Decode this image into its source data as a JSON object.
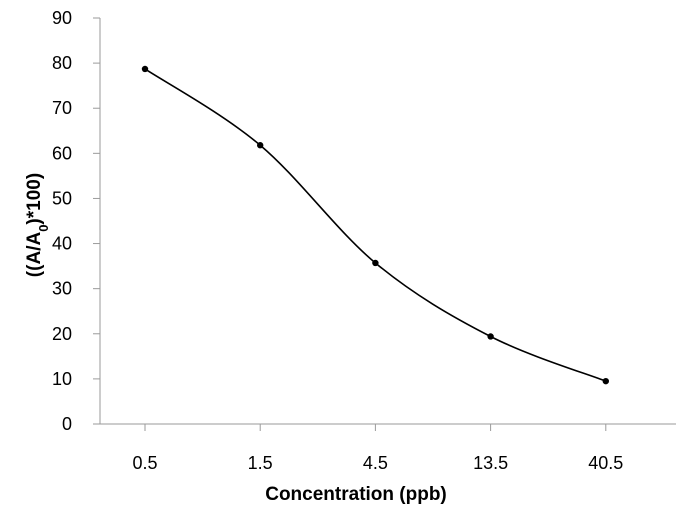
{
  "chart_data": {
    "type": "line",
    "categories": [
      "0.5",
      "1.5",
      "4.5",
      "13.5",
      "40.5"
    ],
    "series": [
      {
        "values": [
          78.7,
          61.8,
          35.7,
          19.4,
          9.5
        ]
      }
    ],
    "xlabel": "Concentration (ppb)",
    "ylabel_prefix": "((A/A",
    "ylabel_subscript": "0",
    "ylabel_suffix": ")*100)",
    "ylim": [
      0,
      90
    ],
    "yticks": [
      "0",
      "10",
      "20",
      "30",
      "40",
      "50",
      "60",
      "70",
      "80",
      "90"
    ],
    "smooth": true,
    "markers": true,
    "grid": false,
    "colors": {
      "line": "#000000",
      "axis": "#9a9a9a"
    }
  }
}
